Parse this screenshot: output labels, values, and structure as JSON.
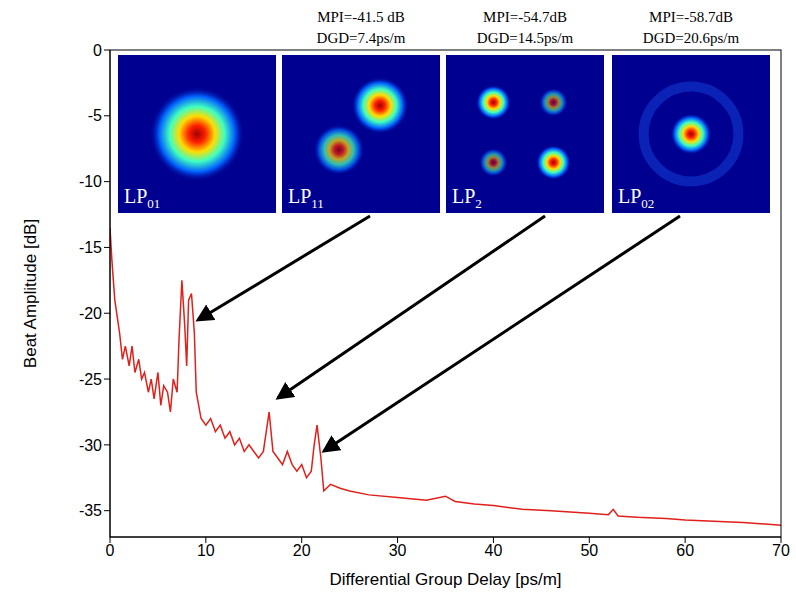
{
  "chart_data": {
    "type": "line",
    "xlabel": "Differential Group Delay [ps/m]",
    "ylabel": "Beat Amplitude [dB]",
    "xlim": [
      0,
      70
    ],
    "xticks": [
      0,
      10,
      20,
      30,
      40,
      50,
      60,
      70
    ],
    "ylim": [
      -37,
      0
    ],
    "yticks": [
      -35,
      -30,
      -25,
      -20,
      -15,
      -10,
      -5,
      0
    ],
    "color": "#e0201b",
    "x": [
      0,
      0.2,
      0.5,
      0.8,
      1,
      1.3,
      1.6,
      2,
      2.3,
      2.6,
      3,
      3.3,
      3.6,
      4,
      4.3,
      4.6,
      5,
      5.3,
      5.6,
      6,
      6.3,
      6.6,
      7,
      7.2,
      7.5,
      7.8,
      8,
      8.2,
      8.5,
      8.8,
      9,
      9.5,
      10,
      10.5,
      11,
      11.5,
      12,
      12.5,
      13,
      13.5,
      14,
      14.5,
      15,
      15.5,
      16,
      16.3,
      16.6,
      17,
      17.5,
      18,
      18.5,
      19,
      19.5,
      20,
      20.5,
      21,
      21.3,
      21.6,
      22,
      22.3,
      23,
      24,
      25,
      27,
      30,
      33,
      35,
      36,
      38,
      40,
      43,
      46,
      50,
      52,
      52.5,
      53,
      55,
      58,
      60,
      63,
      66,
      70
    ],
    "values": [
      -13.5,
      -16,
      -19,
      -20.5,
      -21.5,
      -23.5,
      -22.5,
      -24,
      -22.5,
      -24.5,
      -23.5,
      -25,
      -24.5,
      -26,
      -25,
      -26.5,
      -24.5,
      -27,
      -25.5,
      -26,
      -27.5,
      -25,
      -26,
      -22,
      -17.5,
      -21,
      -24,
      -19,
      -18.5,
      -21.5,
      -26,
      -28,
      -28.5,
      -28,
      -29,
      -28.5,
      -29.5,
      -29,
      -30,
      -29.5,
      -30.5,
      -30,
      -30.5,
      -31,
      -30.5,
      -29,
      -27.5,
      -30.5,
      -31,
      -31.5,
      -30.5,
      -31.5,
      -32,
      -31.5,
      -32.5,
      -32,
      -30,
      -28.5,
      -31,
      -33.5,
      -33,
      -33.3,
      -33.5,
      -33.8,
      -34,
      -34.2,
      -33.9,
      -34.3,
      -34.5,
      -34.6,
      -34.9,
      -35,
      -35.2,
      -35.3,
      -34.9,
      -35.4,
      -35.5,
      -35.6,
      -35.7,
      -35.8,
      -35.9,
      -36.1
    ],
    "insets": [
      {
        "mode": {
          "base": "LP",
          "sub": "01"
        }
      },
      {
        "mode": {
          "base": "LP",
          "sub": "11"
        },
        "mpi": "MPI=-41.5 dB",
        "dgd": "DGD=7.4ps/m"
      },
      {
        "mode": {
          "base": "LP",
          "sub": "2"
        },
        "mpi": "MPI=-54.7dB",
        "dgd": "DGD=14.5ps/m"
      },
      {
        "mode": {
          "base": "LP",
          "sub": "02"
        },
        "mpi": "MPI=-58.7dB",
        "dgd": "DGD=20.6ps/m"
      }
    ]
  }
}
